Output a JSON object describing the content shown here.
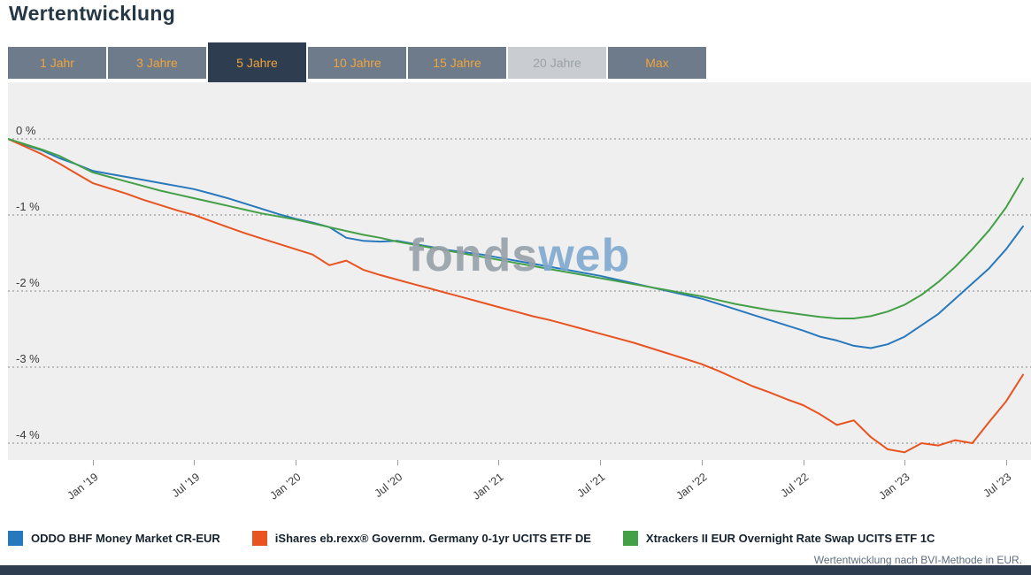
{
  "title": "Wertentwicklung",
  "tabs": {
    "items": [
      {
        "label": "1 Jahr",
        "state": "normal"
      },
      {
        "label": "3 Jahre",
        "state": "normal"
      },
      {
        "label": "5 Jahre",
        "state": "active"
      },
      {
        "label": "10 Jahre",
        "state": "normal"
      },
      {
        "label": "15 Jahre",
        "state": "normal"
      },
      {
        "label": "20 Jahre",
        "state": "disabled"
      },
      {
        "label": "Max",
        "state": "normal"
      }
    ]
  },
  "watermark": {
    "part1": "fonds",
    "part2": "web"
  },
  "footnote": "Wertentwicklung nach BVI-Methode in EUR.",
  "colors": {
    "accent_navy": "#2e3d4f",
    "tab_text_orange": "#f0a43c",
    "tab_disabled_bg": "#c9cdd1",
    "chart_bg": "#efefef",
    "gridline": "#8a8a8a"
  },
  "chart_data": {
    "type": "line",
    "title": "Wertentwicklung",
    "x_unit": "months from Aug 2018 to Aug 2023",
    "ylim": [
      -4.25,
      0.75
    ],
    "grid": "horizontal-dotted",
    "legend_position": "bottom",
    "yticks": [
      0,
      -1,
      -2,
      -3,
      -4
    ],
    "ytick_labels": [
      "0 %",
      "-1 %",
      "-2 %",
      "-3 %",
      "-4 %"
    ],
    "xtick_indices": [
      5,
      11,
      17,
      23,
      29,
      35,
      41,
      47,
      53,
      59
    ],
    "xtick_labels": [
      "Jan '19",
      "Jul '19",
      "Jan '20",
      "Jul '20",
      "Jan '21",
      "Jul '21",
      "Jan '22",
      "Jul '22",
      "Jan '23",
      "Jul '23"
    ],
    "series": [
      {
        "name": "ODDO BHF Money Market CR-EUR",
        "color": "#2878bd",
        "values": [
          0.0,
          -0.08,
          -0.15,
          -0.25,
          -0.33,
          -0.42,
          -0.46,
          -0.5,
          -0.54,
          -0.58,
          -0.62,
          -0.66,
          -0.72,
          -0.78,
          -0.85,
          -0.92,
          -0.99,
          -1.05,
          -1.1,
          -1.16,
          -1.3,
          -1.34,
          -1.35,
          -1.34,
          -1.38,
          -1.42,
          -1.46,
          -1.49,
          -1.52,
          -1.56,
          -1.6,
          -1.64,
          -1.68,
          -1.72,
          -1.76,
          -1.8,
          -1.85,
          -1.9,
          -1.95,
          -2.0,
          -2.05,
          -2.1,
          -2.17,
          -2.24,
          -2.31,
          -2.38,
          -2.45,
          -2.52,
          -2.6,
          -2.65,
          -2.72,
          -2.75,
          -2.7,
          -2.6,
          -2.45,
          -2.3,
          -2.1,
          -1.9,
          -1.7,
          -1.45,
          -1.15
        ]
      },
      {
        "name": "iShares eb.rexx® Governm. Germany 0-1yr UCITS ETF DE",
        "color": "#e8531f",
        "values": [
          0.0,
          -0.1,
          -0.2,
          -0.32,
          -0.45,
          -0.58,
          -0.65,
          -0.72,
          -0.8,
          -0.87,
          -0.94,
          -1.0,
          -1.08,
          -1.16,
          -1.24,
          -1.31,
          -1.38,
          -1.45,
          -1.52,
          -1.66,
          -1.6,
          -1.72,
          -1.79,
          -1.85,
          -1.91,
          -1.97,
          -2.03,
          -2.09,
          -2.15,
          -2.21,
          -2.27,
          -2.33,
          -2.38,
          -2.44,
          -2.5,
          -2.56,
          -2.62,
          -2.68,
          -2.75,
          -2.82,
          -2.89,
          -2.96,
          -3.05,
          -3.15,
          -3.25,
          -3.33,
          -3.42,
          -3.5,
          -3.62,
          -3.76,
          -3.7,
          -3.92,
          -4.08,
          -4.12,
          -4.0,
          -4.03,
          -3.96,
          -4.0,
          -3.72,
          -3.45,
          -3.1
        ]
      },
      {
        "name": "Xtrackers II EUR Overnight Rate Swap UCITS ETF 1C",
        "color": "#43a047",
        "values": [
          0.0,
          -0.07,
          -0.14,
          -0.22,
          -0.33,
          -0.44,
          -0.5,
          -0.56,
          -0.62,
          -0.68,
          -0.73,
          -0.78,
          -0.83,
          -0.88,
          -0.93,
          -0.98,
          -1.02,
          -1.06,
          -1.11,
          -1.16,
          -1.21,
          -1.26,
          -1.3,
          -1.35,
          -1.39,
          -1.43,
          -1.47,
          -1.51,
          -1.55,
          -1.59,
          -1.63,
          -1.67,
          -1.71,
          -1.75,
          -1.79,
          -1.83,
          -1.87,
          -1.91,
          -1.95,
          -1.99,
          -2.03,
          -2.07,
          -2.12,
          -2.17,
          -2.21,
          -2.25,
          -2.28,
          -2.31,
          -2.34,
          -2.36,
          -2.36,
          -2.33,
          -2.27,
          -2.18,
          -2.05,
          -1.88,
          -1.68,
          -1.45,
          -1.2,
          -0.9,
          -0.52
        ]
      }
    ]
  }
}
